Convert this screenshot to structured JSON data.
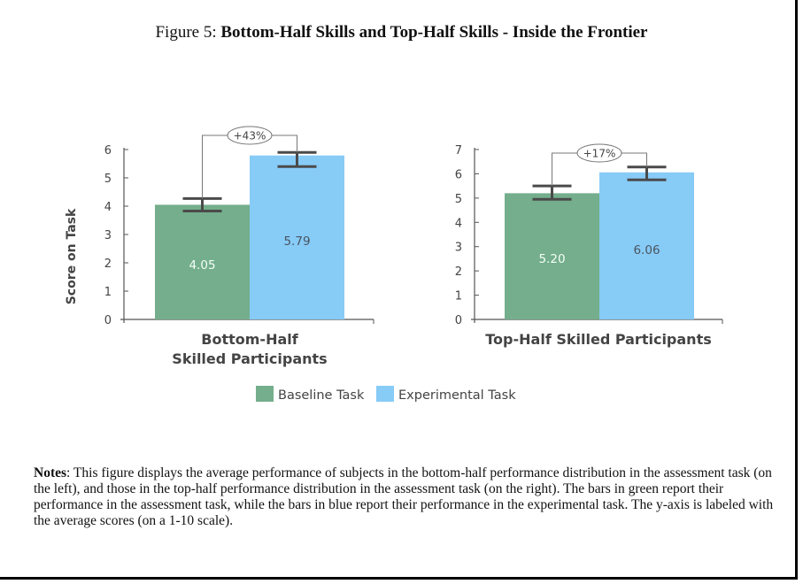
{
  "title": {
    "prefix": "Figure 5:",
    "main": "Bottom-Half Skills and Top-Half Skills - Inside the Frontier"
  },
  "colors": {
    "baseline": "#74ae8c",
    "experimental": "#87cbf7",
    "axis": "#555555"
  },
  "chart_data": [
    {
      "type": "bar",
      "ylabel": "Score on Task",
      "category_label": [
        "Bottom-Half",
        "Skilled Participants"
      ],
      "ylim": [
        0,
        6
      ],
      "yticks": [
        "0",
        "1",
        "2",
        "3",
        "4",
        "5",
        "6"
      ],
      "series": [
        {
          "name": "Baseline Task",
          "value": 4.05,
          "label": "4.05",
          "err": [
            3.83,
            4.27
          ]
        },
        {
          "name": "Experimental Task",
          "value": 5.79,
          "label": "5.79",
          "err": [
            5.4,
            5.9
          ]
        }
      ],
      "annotation": "+43%"
    },
    {
      "type": "bar",
      "ylabel": "",
      "category_label": [
        "Top-Half Skilled Participants"
      ],
      "ylim": [
        0,
        7
      ],
      "yticks": [
        "0",
        "1",
        "2",
        "3",
        "4",
        "5",
        "6",
        "7"
      ],
      "series": [
        {
          "name": "Baseline Task",
          "value": 5.2,
          "label": "5.20",
          "err": [
            4.95,
            5.5
          ]
        },
        {
          "name": "Experimental Task",
          "value": 6.06,
          "label": "6.06",
          "err": [
            5.75,
            6.28
          ]
        }
      ],
      "annotation": "+17%"
    }
  ],
  "legend": [
    "Baseline Task",
    "Experimental Task"
  ],
  "notes": {
    "label": "Notes",
    "text": ": This figure displays the average performance of subjects in the bottom-half performance distribution in the assessment task (on the left), and those in the top-half performance distribution in the assessment task (on the right). The bars in green report their performance in the assessment task, while the bars in blue report their performance in the experimental task. The y-axis is labeled with the average scores (on a 1-10 scale)."
  }
}
